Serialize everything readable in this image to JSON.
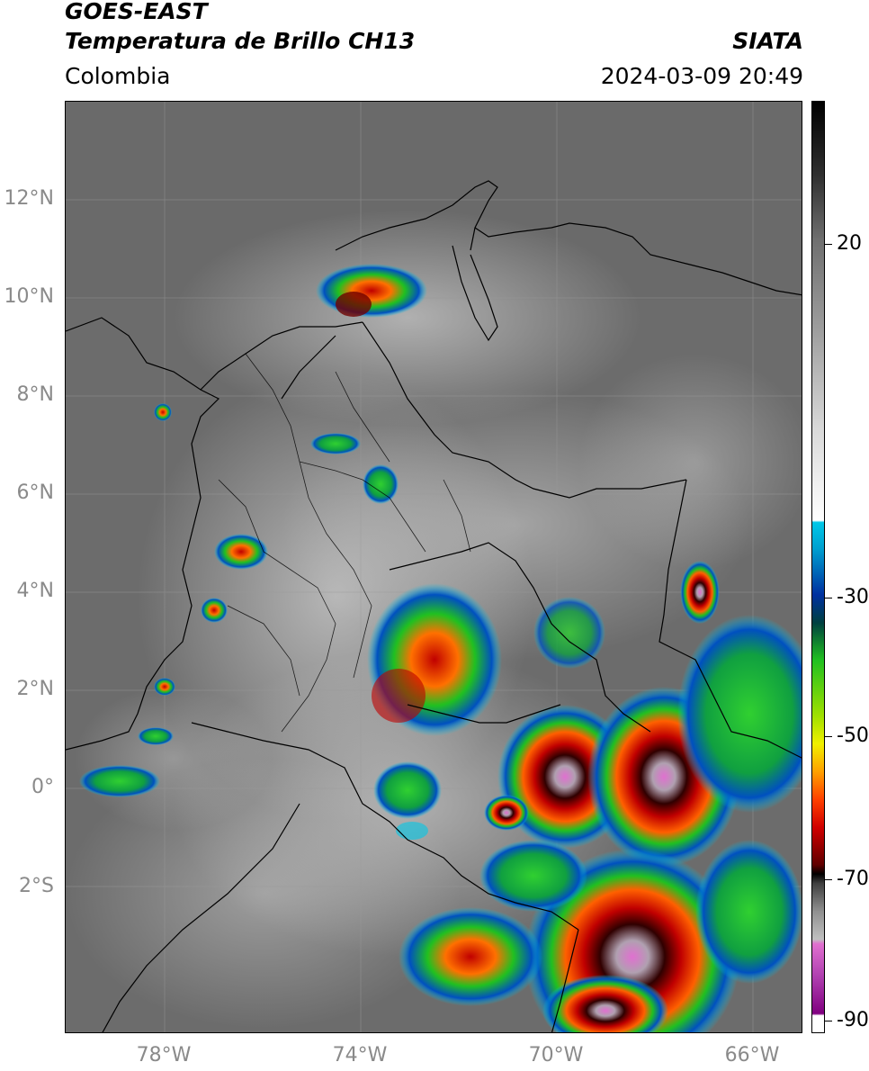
{
  "header": {
    "satellite": "GOES-EAST",
    "product": "Temperatura de Brillo CH13",
    "region": "Colombia",
    "organization": "SIATA",
    "datetime": "2024-03-09 20:49"
  },
  "map": {
    "lat_labels": [
      "12°N",
      "10°N",
      "8°N",
      "6°N",
      "4°N",
      "2°N",
      "0°",
      "2°S"
    ],
    "lon_labels": [
      "78°W",
      "74°W",
      "70°W",
      "66°W"
    ],
    "gridlines": true
  },
  "colorbar": {
    "labels": [
      "20",
      "-30",
      "-50",
      "-70",
      "-90"
    ],
    "colors": {
      "warm_black": "#000000",
      "gray": "#8a8a8a",
      "white": "#ffffff",
      "cyan": "#00c8e8",
      "blue": "#0030a0",
      "green": "#20c020",
      "yellow": "#f0f000",
      "orange": "#ff8000",
      "red": "#d00000",
      "dark_red": "#500000",
      "pink": "#e070d0",
      "purple": "#800080"
    }
  }
}
